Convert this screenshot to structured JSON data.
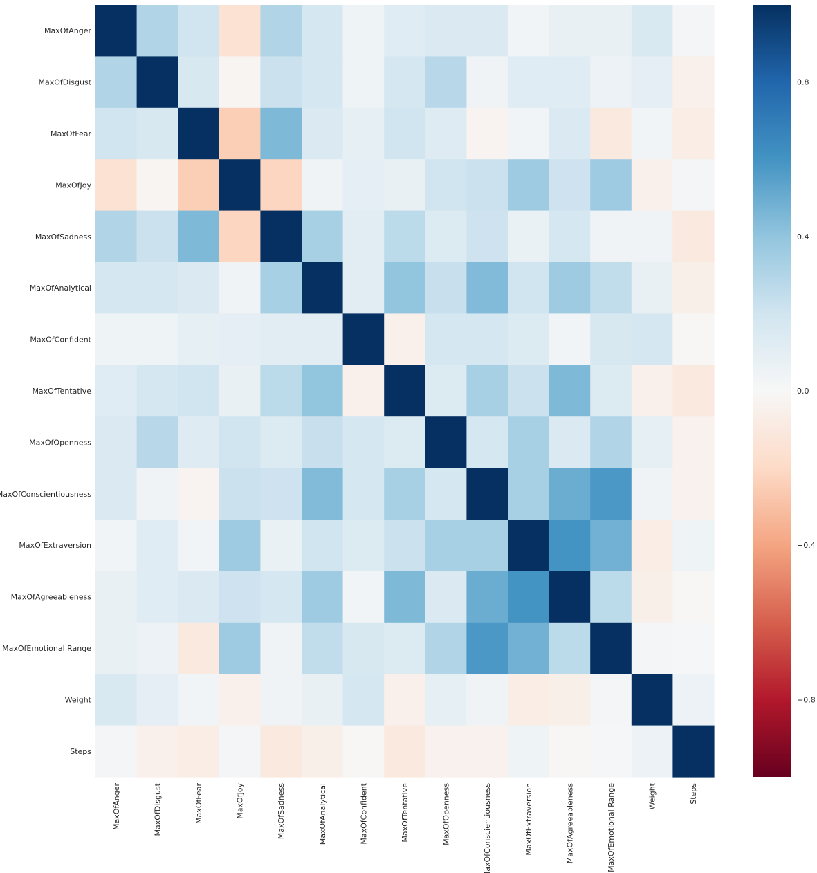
{
  "chart_data": {
    "type": "heatmap",
    "title": "",
    "xlabel": "",
    "ylabel": "",
    "labels": [
      "MaxOfAnger",
      "MaxOfDisgust",
      "MaxOfFear",
      "MaxOfJoy",
      "MaxOfSadness",
      "MaxOfAnalytical",
      "MaxOfConfident",
      "MaxOfTentative",
      "MaxOfOpenness",
      "MaxOfConscientiousness",
      "MaxOfExtraversion",
      "MaxOfAgreeableness",
      "MaxOfEmotional Range",
      "Weight",
      "Steps"
    ],
    "values": [
      [
        1.0,
        0.3,
        0.2,
        -0.15,
        0.3,
        0.18,
        0.05,
        0.12,
        0.15,
        0.15,
        0.03,
        0.08,
        0.08,
        0.16,
        0.02
      ],
      [
        0.3,
        1.0,
        0.17,
        -0.02,
        0.22,
        0.18,
        0.05,
        0.18,
        0.28,
        0.04,
        0.12,
        0.12,
        0.06,
        0.1,
        -0.05
      ],
      [
        0.2,
        0.17,
        1.0,
        -0.25,
        0.45,
        0.15,
        0.09,
        0.2,
        0.13,
        -0.03,
        0.03,
        0.15,
        -0.1,
        0.03,
        -0.07
      ],
      [
        -0.15,
        -0.02,
        -0.25,
        1.0,
        -0.22,
        0.04,
        0.1,
        0.08,
        0.2,
        0.22,
        0.36,
        0.21,
        0.36,
        -0.05,
        0.02
      ],
      [
        0.3,
        0.22,
        0.45,
        -0.22,
        1.0,
        0.33,
        0.11,
        0.27,
        0.14,
        0.21,
        0.07,
        0.18,
        0.04,
        0.04,
        -0.1
      ],
      [
        0.18,
        0.18,
        0.15,
        0.04,
        0.33,
        1.0,
        0.11,
        0.4,
        0.23,
        0.44,
        0.2,
        0.36,
        0.25,
        0.08,
        -0.06
      ],
      [
        0.05,
        0.05,
        0.09,
        0.1,
        0.11,
        0.11,
        1.0,
        -0.05,
        0.18,
        0.18,
        0.14,
        0.03,
        0.17,
        0.18,
        -0.01
      ],
      [
        0.12,
        0.18,
        0.2,
        0.08,
        0.27,
        0.4,
        -0.05,
        1.0,
        0.14,
        0.33,
        0.22,
        0.45,
        0.14,
        -0.05,
        -0.1
      ],
      [
        0.15,
        0.28,
        0.13,
        0.2,
        0.14,
        0.23,
        0.18,
        0.14,
        1.0,
        0.18,
        0.33,
        0.15,
        0.3,
        0.09,
        -0.04
      ],
      [
        0.15,
        0.04,
        -0.03,
        0.22,
        0.21,
        0.44,
        0.18,
        0.33,
        0.18,
        1.0,
        0.33,
        0.5,
        0.58,
        0.04,
        -0.04
      ],
      [
        0.03,
        0.12,
        0.03,
        0.36,
        0.07,
        0.2,
        0.14,
        0.22,
        0.33,
        0.33,
        1.0,
        0.6,
        0.48,
        -0.07,
        0.05
      ],
      [
        0.08,
        0.12,
        0.15,
        0.21,
        0.18,
        0.36,
        0.03,
        0.45,
        0.15,
        0.5,
        0.6,
        1.0,
        0.27,
        -0.06,
        -0.01
      ],
      [
        0.08,
        0.06,
        -0.1,
        0.36,
        0.04,
        0.25,
        0.17,
        0.14,
        0.3,
        0.58,
        0.48,
        0.27,
        1.0,
        0.02,
        0.01
      ],
      [
        0.16,
        0.1,
        0.03,
        -0.05,
        0.04,
        0.08,
        0.18,
        -0.05,
        0.09,
        0.04,
        -0.07,
        -0.06,
        0.02,
        1.0,
        0.06
      ],
      [
        0.02,
        -0.05,
        -0.07,
        0.02,
        -0.1,
        -0.06,
        -0.01,
        -0.1,
        -0.04,
        -0.04,
        0.05,
        -0.01,
        0.01,
        0.06,
        1.0
      ]
    ],
    "vmin": -1.0,
    "vmax": 1.0,
    "colormap": "RdBu",
    "colorbar": {
      "ticks": [
        0.8,
        0.4,
        0.0,
        -0.4,
        -0.8
      ],
      "tick_labels": [
        "0.8",
        "0.4",
        "0.0",
        "−0.4",
        "−0.8"
      ]
    },
    "grid": false,
    "legend": "colorbar-right"
  }
}
